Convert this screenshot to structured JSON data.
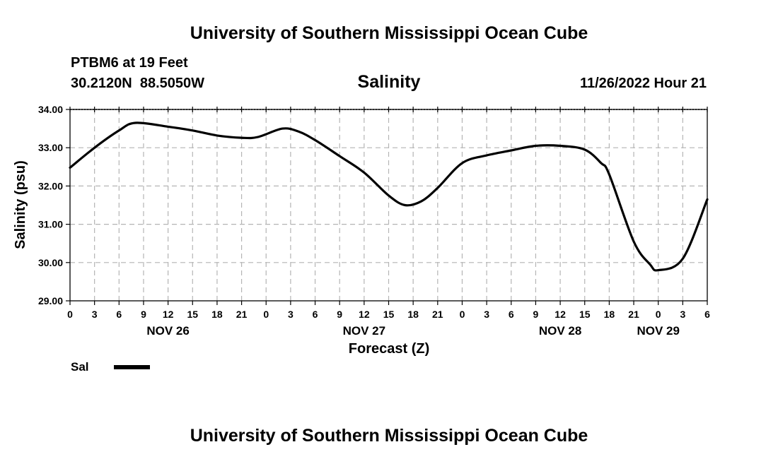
{
  "header": {
    "title": "University of Southern Mississippi Ocean Cube",
    "station": "PTBM6 at 19 Feet",
    "coords": "30.2120N  88.5050W",
    "subtitle": "Salinity",
    "timestamp": "11/26/2022 Hour 21"
  },
  "footer": {
    "title": "University of Southern Mississippi Ocean Cube"
  },
  "colors": {
    "line": "#000000",
    "grid": "#b4b4b4",
    "background": "#ffffff"
  },
  "chart_data": {
    "type": "line",
    "title": "Salinity",
    "xlabel": "Forecast (Z)",
    "ylabel": "Salinity (psu)",
    "ylim": [
      29.0,
      34.0
    ],
    "yticks": [
      "29.00",
      "30.00",
      "31.00",
      "32.00",
      "33.00",
      "34.00"
    ],
    "xlim": [
      "NOV 26 00Z",
      "NOV 29 06Z"
    ],
    "xticks": [
      "0",
      "3",
      "6",
      "9",
      "12",
      "15",
      "18",
      "21",
      "0",
      "3",
      "6",
      "9",
      "12",
      "15",
      "18",
      "21",
      "0",
      "3",
      "6",
      "9",
      "12",
      "15",
      "18",
      "21",
      "0",
      "3",
      "6"
    ],
    "day_labels": [
      {
        "label": "NOV 26",
        "hour": "NOV 26 12Z"
      },
      {
        "label": "NOV 27",
        "hour": "NOV 27 12Z"
      },
      {
        "label": "NOV 28",
        "hour": "NOV 28 12Z"
      },
      {
        "label": "NOV 29",
        "hour": "NOV 29 00Z"
      }
    ],
    "grid": true,
    "legend": {
      "position": "bottom-left",
      "entries": [
        "Sal"
      ]
    },
    "series": [
      {
        "name": "Sal",
        "x": [
          "NOV 26 00Z",
          "NOV 26 03Z",
          "NOV 26 06Z",
          "NOV 26 08Z",
          "NOV 26 12Z",
          "NOV 26 15Z",
          "NOV 26 18Z",
          "NOV 26 21Z",
          "NOV 26 23Z",
          "NOV 27 02Z",
          "NOV 27 04Z",
          "NOV 27 06Z",
          "NOV 27 09Z",
          "NOV 27 12Z",
          "NOV 27 15Z",
          "NOV 27 17Z",
          "NOV 27 19Z",
          "NOV 27 21Z",
          "NOV 28 00Z",
          "NOV 28 03Z",
          "NOV 28 06Z",
          "NOV 28 09Z",
          "NOV 28 12Z",
          "NOV 28 15Z",
          "NOV 28 17Z",
          "NOV 28 18Z",
          "NOV 28 21Z",
          "NOV 28 23Z",
          "NOV 29 00Z",
          "NOV 29 03Z",
          "NOV 29 06Z"
        ],
        "y": [
          32.48,
          33.0,
          33.45,
          33.65,
          33.55,
          33.45,
          33.32,
          33.26,
          33.28,
          33.5,
          33.42,
          33.2,
          32.78,
          32.35,
          31.75,
          31.5,
          31.6,
          31.95,
          32.6,
          32.8,
          32.93,
          33.05,
          33.05,
          32.95,
          32.6,
          32.3,
          30.55,
          29.95,
          29.8,
          30.1,
          31.65
        ]
      }
    ]
  }
}
